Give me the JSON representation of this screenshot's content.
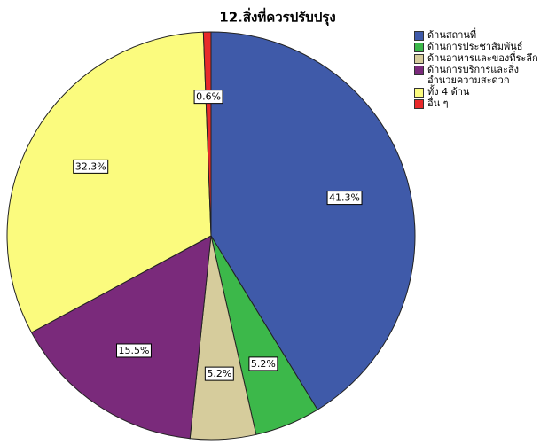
{
  "chart_data": {
    "type": "pie",
    "title": "12.สิ่งที่ควรปรับปรุง",
    "categories": [
      "ด้านสถานที่",
      "ด้านการประชาสัมพันธ์",
      "ด้านอาหารและของที่ระลึก",
      "ด้านการบริการและสิ่งอำนวยความสะดวก",
      "ทั้ง 4 ด้าน",
      "อื่น ๆ"
    ],
    "values": [
      41.3,
      5.2,
      5.2,
      15.5,
      32.3,
      0.6
    ],
    "value_labels": [
      "41.3%",
      "5.2%",
      "5.2%",
      "15.5%",
      "32.3%",
      "0.6%"
    ],
    "colors": [
      "#3f5aa9",
      "#3cb84a",
      "#d6cc9c",
      "#7a2a7b",
      "#fbfb7e",
      "#e8292a"
    ],
    "legend": "top-right"
  }
}
